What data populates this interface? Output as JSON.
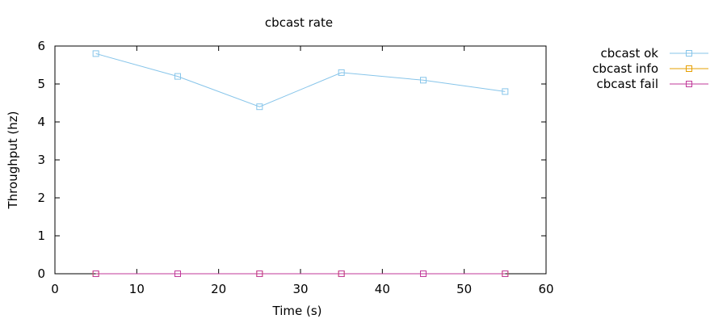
{
  "chart_data": {
    "type": "line",
    "title": "cbcast rate",
    "xlabel": "Time (s)",
    "ylabel": "Throughput (hz)",
    "xlim": [
      0,
      60
    ],
    "ylim": [
      0,
      6
    ],
    "xticks": [
      0,
      10,
      20,
      30,
      40,
      50,
      60
    ],
    "yticks": [
      0,
      1,
      2,
      3,
      4,
      5,
      6
    ],
    "grid": false,
    "legend_position": "outside-right",
    "x": [
      5,
      15,
      25,
      35,
      45,
      55
    ],
    "series": [
      {
        "name": "cbcast ok",
        "color": "#87c5ea",
        "marker": "square",
        "values": [
          5.8,
          5.2,
          4.4,
          5.3,
          5.1,
          4.8
        ]
      },
      {
        "name": "cbcast info",
        "color": "#e69f00",
        "marker": "square",
        "values": [
          0,
          0,
          0,
          0,
          0,
          0
        ]
      },
      {
        "name": "cbcast fail",
        "color": "#c0399a",
        "marker": "square",
        "values": [
          0,
          0,
          0,
          0,
          0,
          0
        ]
      }
    ]
  }
}
